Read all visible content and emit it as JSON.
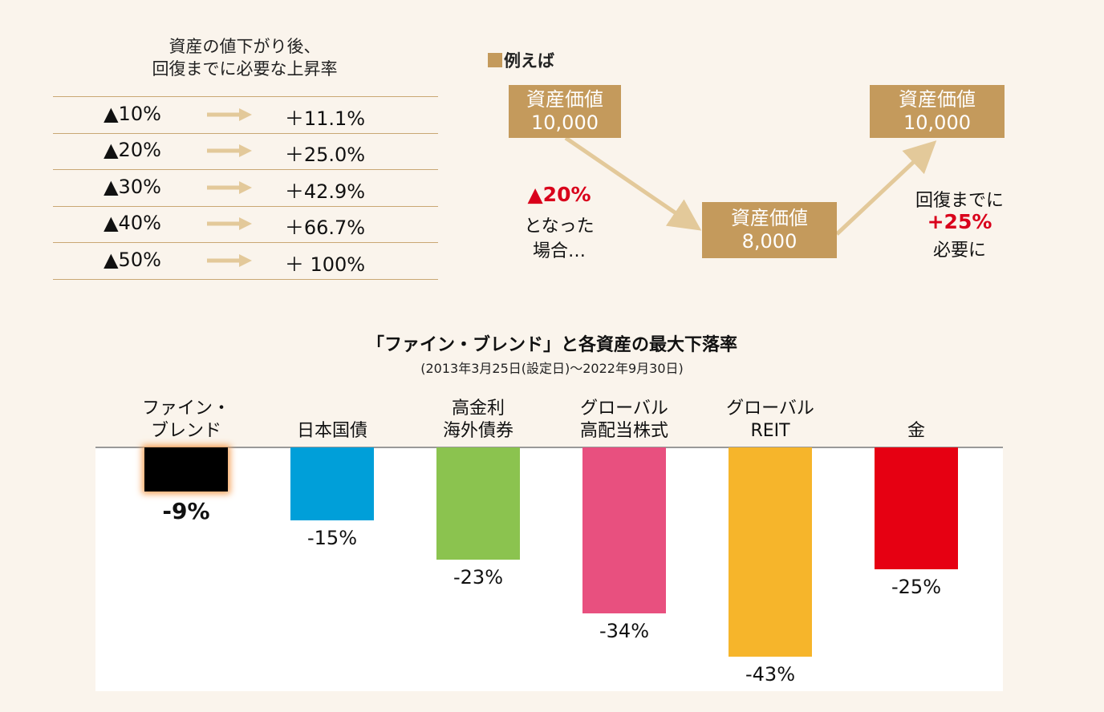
{
  "table": {
    "title": [
      "資産の値下がり後、",
      "回復までに必要な上昇率"
    ],
    "rows": [
      [
        "▲10%",
        "＋11.1%"
      ],
      [
        "▲20%",
        "＋25.0%"
      ],
      [
        "▲30%",
        "＋42.9%"
      ],
      [
        "▲40%",
        "＋66.7%"
      ],
      [
        "▲50%",
        "＋ 100%"
      ]
    ]
  },
  "example": {
    "heading": "例えば",
    "boxes": [
      {
        "label": "資産価値",
        "value": "10,000"
      },
      {
        "label": "資産価値",
        "value": "8,000"
      },
      {
        "label": "資産価値",
        "value": "10,000"
      }
    ],
    "drop_note": [
      "▲20%",
      "となった",
      "場合…"
    ],
    "recovery_note": [
      "回復までに",
      "+25%",
      "必要に"
    ]
  },
  "chart_data": {
    "type": "bar",
    "title": "「ファイン・ブレンド」と各資産の最大下落率",
    "subtitle": "(2013年3月25日(設定日)～2022年9月30日)",
    "categories": [
      "ファイン・\nブレンド",
      "日本国債",
      "高金利\n海外債券",
      "グローバル\n高配当株式",
      "グローバル\nREIT",
      "金"
    ],
    "values": [
      -9,
      -15,
      -23,
      -34,
      -43,
      -25
    ],
    "value_labels": [
      "-9%",
      "-15%",
      "-23%",
      "-34%",
      "-43%",
      "-25%"
    ],
    "colors": [
      "#000000",
      "#009fd9",
      "#8bc34f",
      "#e8507f",
      "#f6b52b",
      "#e60012"
    ],
    "ylim": [
      -50,
      0
    ]
  }
}
